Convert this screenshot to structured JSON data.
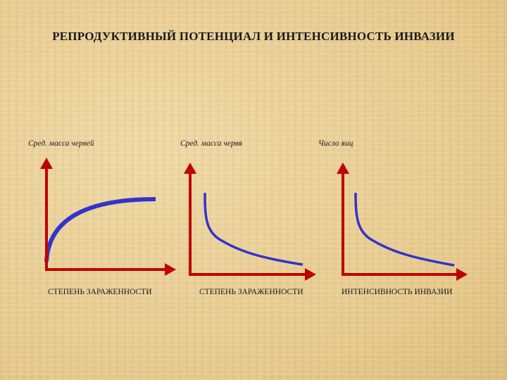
{
  "title": "РЕПРОДУКТИВНЫЙ ПОТЕНЦИАЛ И ИНТЕНСИВНОСТЬ ИНВАЗИИ",
  "graphs": [
    {
      "y_label": "Сред. масса червей",
      "x_label": "СТЕПЕНЬ ЗАРАЖЕННОСТИ",
      "curve": "rising-saturation"
    },
    {
      "y_label": "Сред. масса червя",
      "x_label": "СТЕПЕНЬ ЗАРАЖЕННОСТИ",
      "curve": "decreasing-hyperbola"
    },
    {
      "y_label": "Число яиц",
      "x_label": "ИНТЕНСИВНОСТЬ ИНВАЗИИ",
      "curve": "decreasing-hyperbola"
    }
  ],
  "colors": {
    "axis": "#c00000",
    "curve": "#3333cc",
    "text": "#1a1a1a"
  }
}
